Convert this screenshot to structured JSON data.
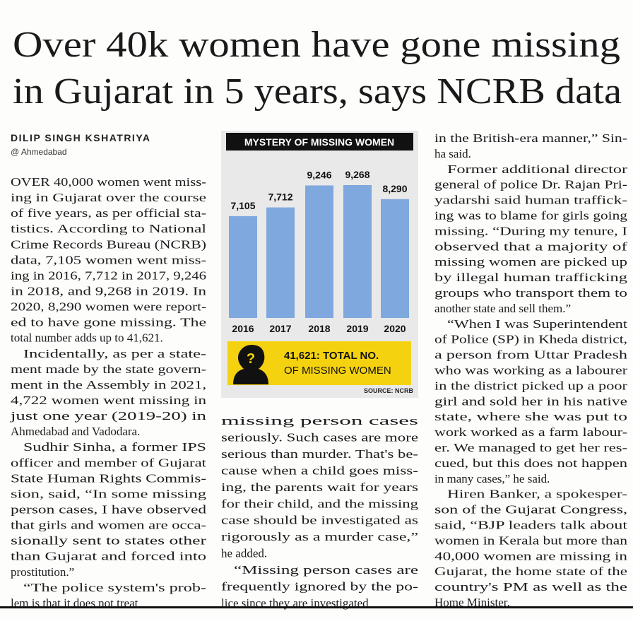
{
  "headline": [
    "Over 40k women have gone missing",
    "in Gujarat in 5 years, says NCRB data"
  ],
  "byline": {
    "author": "DILIP SINGH KSHATRIYA",
    "location": "@ Ahmedabad"
  },
  "columns": [
    {
      "paragraphs": [
        [
          "OVER 40,000 women went miss-",
          "ing in Gujarat over the course",
          "of five years, as per official sta-",
          "tistics. According to National",
          "Crime Records Bureau (NCRB)",
          "data, 7,105 women went miss-",
          "ing in 2016, 7,712 in 2017, 9,246",
          "in 2018, and 9,268 in 2019. In",
          "2020, 8,290 women were report-",
          "ed to have gone missing. The",
          "total number adds up to 41,621."
        ],
        [
          "Incidentally, as per a state-",
          "ment made by the state govern-",
          "ment in the Assembly in 2021,",
          "4,722 women went missing in",
          "just one year (2019-20) in",
          "Ahmedabad and Vadodara."
        ],
        [
          "Sudhir Sinha, a former IPS",
          "officer and member of Gujarat",
          "State Human Rights Commis-",
          "sion, said, “In some missing",
          "person cases, I have observed",
          "that girls and women are occa-",
          "sionally sent to states other",
          "than Gujarat and forced into",
          "prostitution.”"
        ],
        [
          "“The police system's prob-",
          "lem is that it does not treat"
        ]
      ]
    },
    {
      "paragraphs": [
        [
          "missing person cases",
          "seriously. Such cases are more",
          "serious than murder. That's be-",
          "cause when a child goes miss-",
          "ing, the parents wait for years",
          "for their child, and the missing",
          "case should be investigated as",
          "rigorously as a murder case,”",
          "he added."
        ],
        [
          "“Missing person cases are",
          "frequently ignored by the po-",
          "lice since they are investigated"
        ]
      ]
    },
    {
      "paragraphs": [
        [
          "in the British-era manner,” Sin-",
          "ha said."
        ],
        [
          "Former additional director",
          "general of police Dr. Rajan Pri-",
          "yadarshi said human traffick-",
          "ing was to blame for girls going",
          "missing. “During my tenure, I",
          "observed that a majority of",
          "missing women are picked up",
          "by illegal human trafficking",
          "groups who transport them to",
          "another state and sell them.”"
        ],
        [
          "“When I was Superintendent",
          "of Police (SP) in Kheda district,",
          "a person from Uttar Pradesh",
          "who was working as a labourer",
          "in the district picked up a poor",
          "girl and sold her in his native",
          "state, where she was put to",
          "work worked as a farm labour-",
          "er. We managed to get her res-",
          "cued, but this does not happen",
          "in many cases,” he said."
        ],
        [
          "Hiren Banker, a spokesper-",
          "son of the Gujarat Congress,",
          "said, “BJP leaders talk about",
          "women in Kerala but more than",
          "40,000 women are missing in",
          "Gujarat, the home state of the",
          "country's PM as well as the",
          "Home Minister."
        ]
      ]
    }
  ],
  "chart_data": {
    "type": "bar",
    "title": "MYSTERY OF MISSING WOMEN",
    "categories": [
      "2016",
      "2017",
      "2018",
      "2019",
      "2020"
    ],
    "values": [
      7105,
      7712,
      9246,
      9268,
      8290
    ],
    "value_labels": [
      "7,105",
      "7,712",
      "9,246",
      "9,268",
      "8,290"
    ],
    "color": "#7fa8de",
    "callout": [
      "41,621: TOTAL NO.",
      "OF MISSING WOMEN"
    ],
    "source": "SOURCE: NCRB"
  }
}
